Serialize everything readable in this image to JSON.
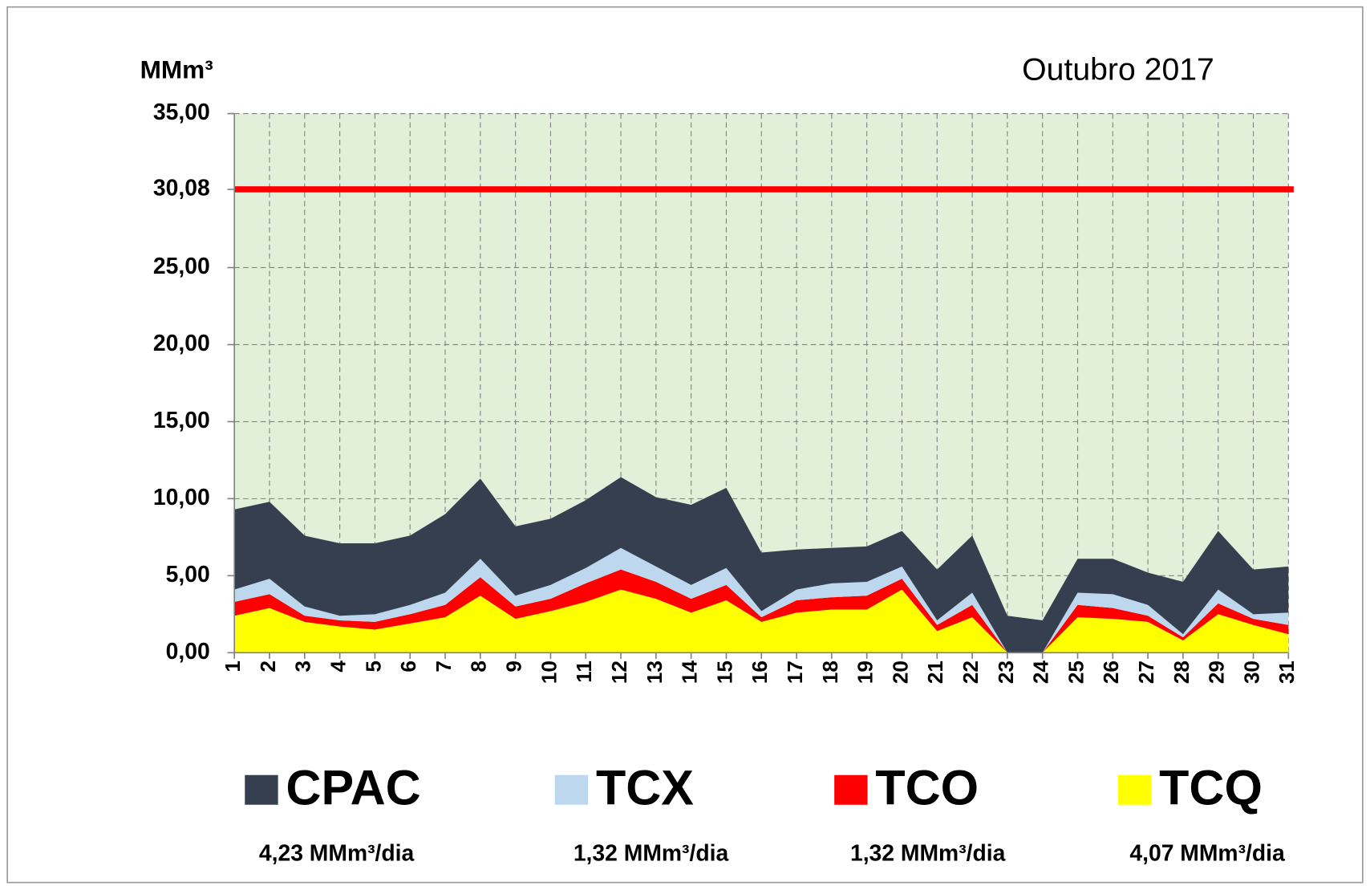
{
  "chart_data": {
    "type": "stacked_area",
    "title": "Outubro 2017",
    "y_label": "MMm³",
    "categories": [
      "1",
      "2",
      "3",
      "4",
      "5",
      "6",
      "7",
      "8",
      "9",
      "10",
      "11",
      "12",
      "13",
      "14",
      "15",
      "16",
      "17",
      "18",
      "19",
      "20",
      "21",
      "22",
      "23",
      "24",
      "25",
      "26",
      "27",
      "28",
      "29",
      "30",
      "31"
    ],
    "series": [
      {
        "name": "CPAC",
        "color": "#353f4f",
        "note": "4,23 MMm³/dia",
        "values": [
          5.2,
          5.0,
          4.6,
          4.7,
          4.6,
          4.5,
          5.1,
          5.2,
          4.5,
          4.3,
          4.4,
          4.6,
          4.5,
          5.2,
          5.2,
          3.8,
          2.6,
          2.3,
          2.3,
          2.3,
          3.3,
          3.7,
          2.4,
          2.1,
          2.2,
          2.3,
          2.1,
          3.4,
          3.8,
          2.9,
          3.0
        ]
      },
      {
        "name": "TCX",
        "color": "#bdd7ee",
        "note": "1,32 MMm³/dia",
        "values": [
          0.8,
          1.0,
          0.6,
          0.3,
          0.5,
          0.6,
          0.8,
          1.2,
          0.7,
          0.9,
          1.0,
          1.4,
          1.0,
          0.9,
          1.1,
          0.4,
          0.7,
          0.9,
          0.9,
          0.8,
          0.3,
          0.8,
          0,
          0,
          0.8,
          0.9,
          0.7,
          0.2,
          0.9,
          0.3,
          0.8
        ]
      },
      {
        "name": "TCO",
        "color": "#ff0000",
        "note": "1,32 MMm³/dia",
        "values": [
          0.9,
          0.9,
          0.4,
          0.4,
          0.5,
          0.6,
          0.8,
          1.2,
          0.8,
          0.8,
          1.2,
          1.3,
          1.1,
          0.9,
          1.0,
          0.3,
          0.8,
          0.8,
          0.9,
          0.7,
          0.4,
          0.8,
          0,
          0,
          0.8,
          0.7,
          0.4,
          0.2,
          0.7,
          0.4,
          0.6
        ]
      },
      {
        "name": "TCQ",
        "color": "#ffff00",
        "note": "4,07 MMm³/dia",
        "values": [
          2.4,
          2.9,
          2.0,
          1.7,
          1.5,
          1.9,
          2.3,
          3.7,
          2.2,
          2.7,
          3.3,
          4.1,
          3.5,
          2.6,
          3.4,
          2.0,
          2.6,
          2.8,
          2.8,
          4.1,
          1.4,
          2.3,
          0,
          0,
          2.3,
          2.2,
          2.0,
          0.8,
          2.5,
          1.8,
          1.2
        ]
      }
    ],
    "reference_line": {
      "value": 30.08,
      "color": "#ff0000"
    },
    "ylim": [
      0,
      35
    ],
    "yticks": [
      {
        "value": 0,
        "label": "0,00"
      },
      {
        "value": 5,
        "label": "5,00"
      },
      {
        "value": 10,
        "label": "10,00"
      },
      {
        "value": 15,
        "label": "15,00"
      },
      {
        "value": 20,
        "label": "20,00"
      },
      {
        "value": 25,
        "label": "25,00"
      },
      {
        "value": 30.08,
        "label": "30,08"
      },
      {
        "value": 35,
        "label": "35,00"
      }
    ],
    "grid": true,
    "plot_background": "#e2efd9",
    "legend": "bottom"
  }
}
